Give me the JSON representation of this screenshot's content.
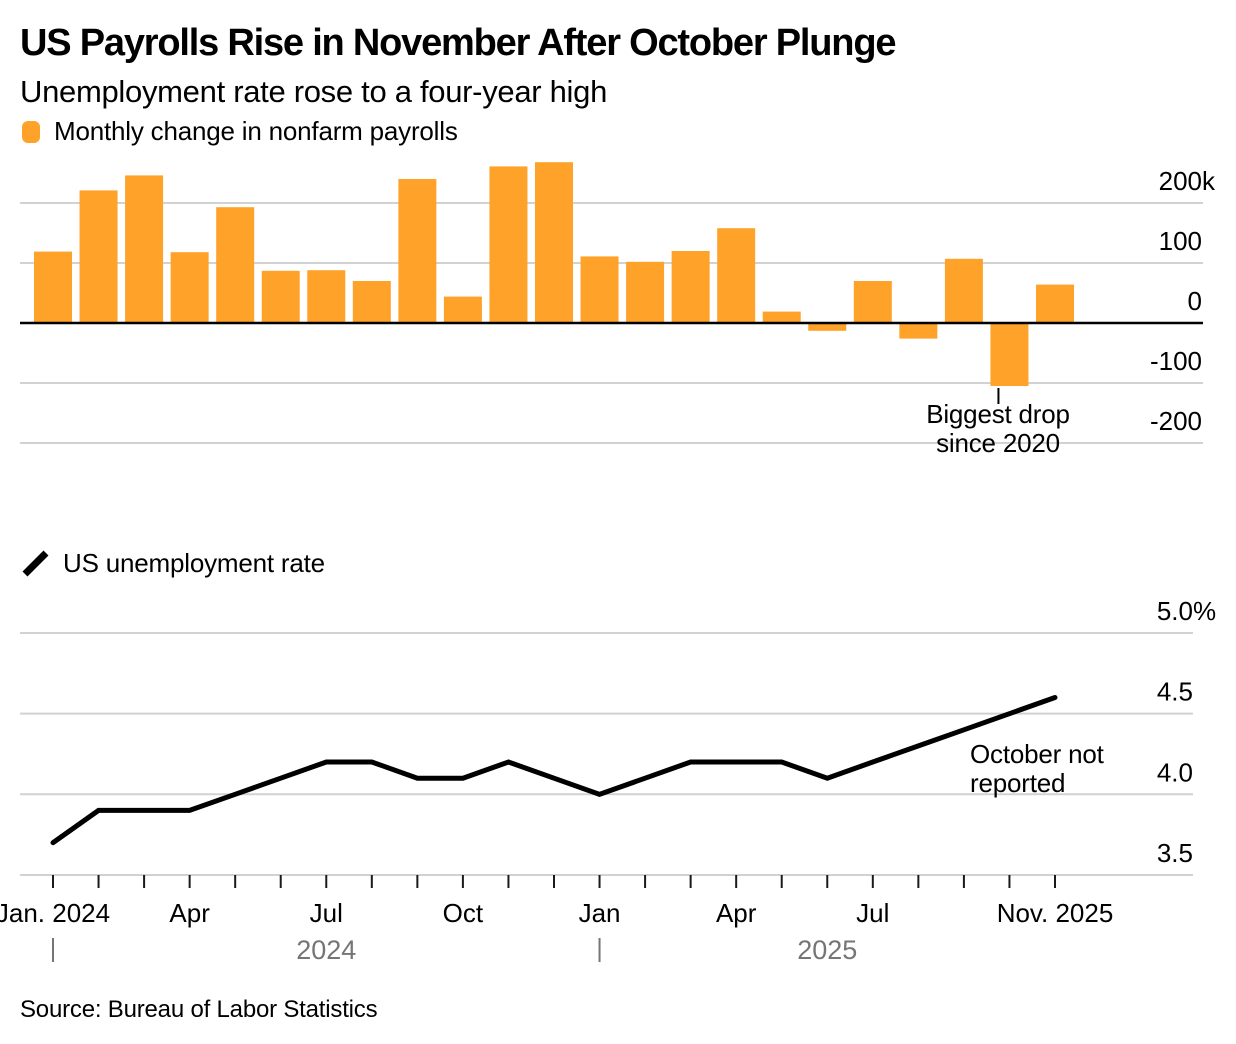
{
  "header": {
    "title": "US Payrolls Rise in November After October Plunge",
    "subtitle": "Unemployment rate rose to a four-year high"
  },
  "legends": {
    "payrolls": "Monthly change in nonfarm payrolls",
    "unemployment": "US unemployment rate"
  },
  "annotations": {
    "payrolls": {
      "line1": "Biggest drop",
      "line2": "since 2020"
    },
    "unemployment": {
      "line1": "October not",
      "line2": "reported"
    }
  },
  "source": "Source: Bureau of Labor Statistics",
  "colors": {
    "bar": "#FFA22A",
    "line": "#000000",
    "grid": "#D2D2D2",
    "zero_axis": "#000000",
    "tick": "#1A1A1A",
    "year_label": "#757575"
  },
  "xaxis": {
    "labels": [
      {
        "index": 0,
        "text": "Jan. 2024"
      },
      {
        "index": 3,
        "text": "Apr"
      },
      {
        "index": 6,
        "text": "Jul"
      },
      {
        "index": 9,
        "text": "Oct"
      },
      {
        "index": 12,
        "text": "Jan"
      },
      {
        "index": 15,
        "text": "Apr"
      },
      {
        "index": 18,
        "text": "Jul"
      },
      {
        "index": 22,
        "text": "Nov. 2025"
      }
    ],
    "years": [
      {
        "text": "2024",
        "start_index": 0,
        "end_index": 12
      },
      {
        "text": "2025",
        "start_index": 12,
        "end_index": 22
      }
    ]
  },
  "chart_data": [
    {
      "type": "bar",
      "name": "monthly-change-in-nonfarm-payrolls",
      "legend": "Monthly change in nonfarm payrolls",
      "unit": "thousands of jobs",
      "categories": [
        "Jan 2024",
        "Feb 2024",
        "Mar 2024",
        "Apr 2024",
        "May 2024",
        "Jun 2024",
        "Jul 2024",
        "Aug 2024",
        "Sep 2024",
        "Oct 2024",
        "Nov 2024",
        "Dec 2024",
        "Jan 2025",
        "Feb 2025",
        "Mar 2025",
        "Apr 2025",
        "May 2025",
        "Jun 2025",
        "Jul 2025",
        "Aug 2025",
        "Sep 2025",
        "Oct 2025",
        "Nov 2025"
      ],
      "values": [
        119,
        221,
        246,
        118,
        193,
        87,
        88,
        70,
        240,
        44,
        261,
        268,
        111,
        102,
        120,
        158,
        19,
        -13,
        70,
        -26,
        107,
        -105,
        64
      ],
      "yticks": [
        {
          "v": 200,
          "label": "200k"
        },
        {
          "v": 100,
          "label": "100"
        },
        {
          "v": 0,
          "label": "0"
        },
        {
          "v": -100,
          "label": "-100"
        },
        {
          "v": -200,
          "label": "-200"
        }
      ],
      "ylim": [
        -230,
        280
      ],
      "grid": true,
      "legend_position": "top-left",
      "annotation_target": "Oct 2025"
    },
    {
      "type": "line",
      "name": "us-unemployment-rate",
      "legend": "US unemployment rate",
      "unit": "percent",
      "categories": [
        "Jan 2024",
        "Feb 2024",
        "Mar 2024",
        "Apr 2024",
        "May 2024",
        "Jun 2024",
        "Jul 2024",
        "Aug 2024",
        "Sep 2024",
        "Oct 2024",
        "Nov 2024",
        "Dec 2024",
        "Jan 2025",
        "Feb 2025",
        "Mar 2025",
        "Apr 2025",
        "May 2025",
        "Jun 2025",
        "Jul 2025",
        "Aug 2025",
        "Sep 2025",
        "Oct 2025",
        "Nov 2025"
      ],
      "values": [
        3.7,
        3.9,
        3.9,
        3.9,
        4.0,
        4.1,
        4.2,
        4.2,
        4.1,
        4.1,
        4.2,
        4.1,
        4.0,
        4.1,
        4.2,
        4.2,
        4.2,
        4.1,
        4.2,
        4.3,
        4.4,
        null,
        4.6
      ],
      "yticks": [
        {
          "v": 5.0,
          "label": "5.0%"
        },
        {
          "v": 4.5,
          "label": "4.5"
        },
        {
          "v": 4.0,
          "label": "4.0"
        },
        {
          "v": 3.5,
          "label": "3.5"
        }
      ],
      "ylim": [
        3.3,
        5.15
      ],
      "grid": true,
      "legend_position": "top-left",
      "note": "October 2025 not reported"
    }
  ]
}
